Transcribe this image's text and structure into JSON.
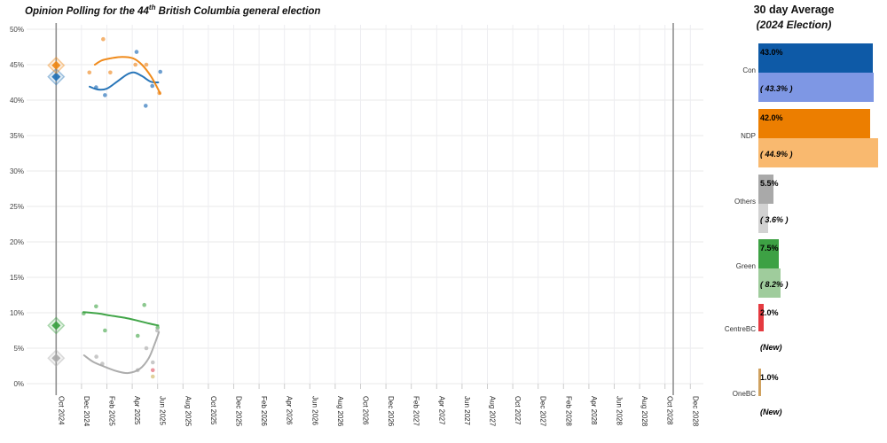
{
  "title": {
    "prefix": "Opinion Polling for the 44",
    "superscript": "th",
    "suffix": " British Columbia general election"
  },
  "legend": {
    "title": "30 day Average",
    "subtitle": "(2024 Election)",
    "parties": [
      {
        "name": "Con",
        "avg_label": "43.0%",
        "avg_value": 43.0,
        "avg_color": "#0e5aa7",
        "election_label": "( 43.3% )",
        "election_value": 43.3,
        "election_color": "#7e97e4"
      },
      {
        "name": "NDP",
        "avg_label": "42.0%",
        "avg_value": 42.0,
        "avg_color": "#ec7e00",
        "election_label": "( 44.9% )",
        "election_value": 44.9,
        "election_color": "#f9b96f"
      },
      {
        "name": "Others",
        "avg_label": "5.5%",
        "avg_value": 5.5,
        "avg_color": "#a9a9a9",
        "election_label": "( 3.6% )",
        "election_value": 3.6,
        "election_color": "#d2d2d2"
      },
      {
        "name": "Green",
        "avg_label": "7.5%",
        "avg_value": 7.5,
        "avg_color": "#3da144",
        "election_label": "( 8.2% )",
        "election_value": 8.2,
        "election_color": "#9fcc9c"
      },
      {
        "name": "CentreBC",
        "avg_label": "2.0%",
        "avg_value": 2.0,
        "avg_color": "#e53a40",
        "election_label": "(New)",
        "election_value": null,
        "election_color": null
      },
      {
        "name": "OneBC",
        "avg_label": "1.0%",
        "avg_value": 1.0,
        "avg_color": "#d0a260",
        "election_label": "(New)",
        "election_value": null,
        "election_color": null
      }
    ]
  },
  "chart_data": {
    "type": "scatter",
    "note": "x stored as months since Oct 2024; y as percent",
    "x_axis": {
      "ticks": [
        "Oct 2024",
        "Dec 2024",
        "Feb 2025",
        "Apr 2025",
        "Jun 2025",
        "Aug 2025",
        "Oct 2025",
        "Dec 2025",
        "Feb 2026",
        "Apr 2026",
        "Jun 2026",
        "Aug 2026",
        "Oct 2026",
        "Dec 2026",
        "Feb 2027",
        "Apr 2027",
        "Jun 2027",
        "Aug 2027",
        "Oct 2027",
        "Dec 2027",
        "Feb 2028",
        "Apr 2028",
        "Jun 2028",
        "Aug 2028",
        "Oct 2028",
        "Dec 2028"
      ],
      "months_per_tick": 2
    },
    "y_axis": {
      "min": 0,
      "max": 50,
      "ticks": [
        {
          "label": "0%",
          "value": 0
        },
        {
          "label": "5%",
          "value": 5
        },
        {
          "label": "10%",
          "value": 10
        },
        {
          "label": "15%",
          "value": 15
        },
        {
          "label": "20%",
          "value": 20
        },
        {
          "label": "25%",
          "value": 25
        },
        {
          "label": "30%",
          "value": 30
        },
        {
          "label": "35%",
          "value": 35
        },
        {
          "label": "40%",
          "value": 40
        },
        {
          "label": "45%",
          "value": 45
        },
        {
          "label": "50%",
          "value": 50
        }
      ]
    },
    "election_lines": [
      {
        "name": "2024-election",
        "m": 0
      },
      {
        "name": "2028-scheduled-election",
        "m": 48.65
      }
    ],
    "series": [
      {
        "name": "Con",
        "dot_color": "#3c7fc0",
        "line_color": "#1d6fb5",
        "election_result": {
          "m": 0,
          "v": 43.3
        },
        "points": [
          [
            3.15,
            41.8
          ],
          [
            3.85,
            40.7
          ],
          [
            6.34,
            46.8
          ],
          [
            7.06,
            39.2
          ],
          [
            7.58,
            42.0
          ],
          [
            8.21,
            44.0
          ]
        ],
        "trend": [
          [
            2.64,
            41.9
          ],
          [
            3.27,
            41.5
          ],
          [
            3.97,
            41.6
          ],
          [
            4.8,
            42.6
          ],
          [
            5.57,
            43.6
          ],
          [
            6.13,
            43.9
          ],
          [
            6.76,
            43.4
          ],
          [
            7.46,
            42.6
          ],
          [
            8.05,
            42.5
          ]
        ]
      },
      {
        "name": "NDP",
        "dot_color": "#f09a42",
        "line_color": "#ef8510",
        "election_result": {
          "m": 0,
          "v": 44.9
        },
        "points": [
          [
            2.62,
            43.9
          ],
          [
            3.71,
            48.6
          ],
          [
            4.27,
            43.9
          ],
          [
            6.25,
            45.0
          ],
          [
            7.11,
            45.0
          ],
          [
            8.14,
            41.0
          ]
        ],
        "trend": [
          [
            3.05,
            45.0
          ],
          [
            3.6,
            45.6
          ],
          [
            4.3,
            45.9
          ],
          [
            5.2,
            46.1
          ],
          [
            6.06,
            45.9
          ],
          [
            6.76,
            45.0
          ],
          [
            7.46,
            43.4
          ],
          [
            8.02,
            41.6
          ],
          [
            8.2,
            40.9
          ]
        ]
      },
      {
        "name": "Green",
        "dot_color": "#66b66a",
        "line_color": "#37a03e",
        "election_result": {
          "m": 0,
          "v": 8.2
        },
        "points": [
          [
            2.17,
            9.9
          ],
          [
            3.15,
            10.9
          ],
          [
            3.85,
            7.5
          ],
          [
            6.43,
            6.75
          ],
          [
            6.95,
            11.1
          ],
          [
            8.0,
            7.9
          ]
        ],
        "trend": [
          [
            2.15,
            10.1
          ],
          [
            3.3,
            9.9
          ],
          [
            4.3,
            9.6
          ],
          [
            5.4,
            9.3
          ],
          [
            6.4,
            8.9
          ],
          [
            7.3,
            8.5
          ],
          [
            8.05,
            8.2
          ]
        ]
      },
      {
        "name": "Others",
        "dot_color": "#b5b5b5",
        "line_color": "#a9a9a9",
        "election_result": {
          "m": 0,
          "v": 3.6
        },
        "points": [
          [
            3.17,
            3.8
          ],
          [
            3.64,
            2.8
          ],
          [
            6.43,
            1.9
          ],
          [
            7.11,
            5.0
          ],
          [
            7.62,
            3.0
          ],
          [
            7.97,
            7.5
          ]
        ],
        "trend": [
          [
            2.2,
            4.0
          ],
          [
            2.9,
            3.1
          ],
          [
            3.8,
            2.4
          ],
          [
            4.8,
            1.75
          ],
          [
            5.7,
            1.5
          ],
          [
            6.6,
            2.1
          ],
          [
            7.3,
            3.6
          ],
          [
            7.8,
            5.75
          ],
          [
            8.1,
            7.25
          ]
        ]
      },
      {
        "name": "CentreBC",
        "dot_color": "#e4707e",
        "line_color": null,
        "election_result": null,
        "points": [
          [
            7.62,
            1.9
          ]
        ],
        "trend": []
      },
      {
        "name": "OneBC",
        "dot_color": "#d6c07a",
        "line_color": null,
        "election_result": null,
        "points": [
          [
            7.62,
            1.0
          ]
        ],
        "trend": []
      }
    ]
  }
}
